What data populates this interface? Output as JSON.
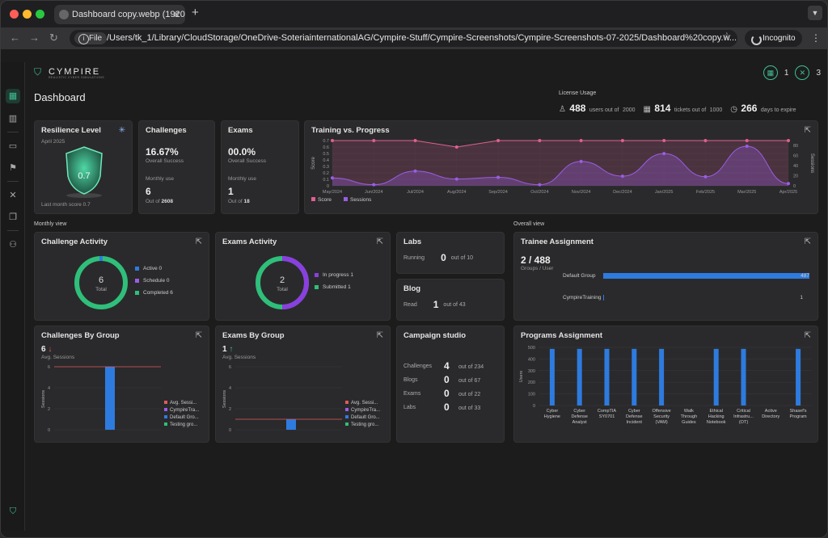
{
  "browser": {
    "tab_title": "Dashboard copy.webp (1920×",
    "file_label": "File",
    "url": "/Users/tk_1/Library/CloudStorage/OneDrive-SoteriainternationalAG/Cympire-Stuff/Cympire-Screenshots/Cympire-Screenshots-07-2025/Dashboard%20copy.w...",
    "incognito_label": "Incognito"
  },
  "app": {
    "brand": "CYMPIRE",
    "brand_sub": "REALISTIC CYBER SIMULATIONS",
    "header_count_1": "1",
    "header_count_2": "3",
    "page_title": "Dashboard"
  },
  "license": {
    "title": "License Usage",
    "users": "488",
    "users_text": "users out of",
    "users_total": "2000",
    "tickets": "814",
    "tickets_text": "tickets out of",
    "tickets_total": "1000",
    "days": "266",
    "days_text": "days to expire"
  },
  "resilience": {
    "title": "Resilience Level",
    "date": "April 2025",
    "score": "0.7",
    "last_month": "Last month score 0.7"
  },
  "challenges": {
    "title": "Challenges",
    "pct": "16.67%",
    "pct_label": "Overall Success",
    "monthly_label": "Monthly use",
    "monthly": "6",
    "out_of": "Out of",
    "total": "2608"
  },
  "exams": {
    "title": "Exams",
    "pct": "00.0%",
    "pct_label": "Overall Success",
    "monthly_label": "Monthly use",
    "monthly": "1",
    "out_of": "Out of",
    "total": "18"
  },
  "training": {
    "title": "Training vs. Progress",
    "ylabel": "Score",
    "y2label": "Sessions",
    "legend_score": "Score",
    "legend_sessions": "Sessions",
    "months": [
      "May/2024",
      "Jun/2024",
      "Jul/2024",
      "Aug/2024",
      "Sep/2024",
      "Oct/2024",
      "Nov/2024",
      "Dec/2024",
      "Jan/2025",
      "Feb/2025",
      "Mar/2025",
      "Apr/2025"
    ],
    "yticks": [
      "0.7",
      "0.6",
      "0.5",
      "0.4",
      "0.3",
      "0.2",
      "0.1",
      "0"
    ],
    "y2ticks": [
      "80",
      "60",
      "40",
      "20",
      "0"
    ],
    "score": [
      0.7,
      0.7,
      0.7,
      0.6,
      0.7,
      0.7,
      0.7,
      0.7,
      0.7,
      0.7,
      0.7,
      0.7
    ],
    "sessions": [
      14,
      2,
      26,
      12,
      15,
      2,
      43,
      17,
      57,
      16,
      70,
      4
    ]
  },
  "sections": {
    "monthly": "Monthly view",
    "overall": "Overall view"
  },
  "challenge_activity": {
    "title": "Challenge Activity",
    "center": "6",
    "center_label": "Total",
    "legend": [
      "Active 0",
      "Schedule 0",
      "Completed 6"
    ],
    "values": [
      0,
      0,
      6
    ]
  },
  "exams_activity": {
    "title": "Exams Activity",
    "center": "2",
    "center_label": "Total",
    "legend": [
      "In progress 1",
      "Submitted 1"
    ],
    "values": [
      1,
      1
    ]
  },
  "labs": {
    "title": "Labs",
    "label": "Running",
    "value": "0",
    "out_of": "out of",
    "total": "10"
  },
  "blog": {
    "title": "Blog",
    "label": "Read",
    "value": "1",
    "out_of": "out of",
    "total": "43"
  },
  "campaign": {
    "title": "Campaign studio",
    "rows": [
      {
        "label": "Challenges",
        "value": "4",
        "out": "out of 234"
      },
      {
        "label": "Blogs",
        "value": "0",
        "out": "out of 67"
      },
      {
        "label": "Exams",
        "value": "0",
        "out": "out of 22"
      },
      {
        "label": "Labs",
        "value": "0",
        "out": "out of 33"
      }
    ]
  },
  "trainee": {
    "title": "Trainee Assignment",
    "value": "2 / 488",
    "sub": "Groups / User",
    "rows": [
      {
        "label": "Default Group",
        "value": "487",
        "fraction": 0.998
      },
      {
        "label": "CympireTraining",
        "value": "1",
        "fraction": 0.002
      }
    ]
  },
  "challenges_group": {
    "title": "Challenges By Group",
    "value": "6",
    "sub": "Avg. Sessions",
    "ylabel": "Sessions",
    "yticks": [
      "6",
      "4",
      "2",
      "0"
    ],
    "bar": 6,
    "avg": 6,
    "legend": [
      "Avg. Sessi...",
      "CympireTra...",
      "Default Gro...",
      "Testing gro..."
    ]
  },
  "exams_group": {
    "title": "Exams By Group",
    "value": "1",
    "sub": "Avg. Sessions",
    "ylabel": "Sessions",
    "yticks": [
      "6",
      "4",
      "2",
      "0"
    ],
    "bar": 1,
    "avg": 1,
    "legend": [
      "Avg. Sessi...",
      "CympireTra...",
      "Default Gro...",
      "Testing gro..."
    ]
  },
  "programs": {
    "title": "Programs Assignment",
    "ylabel": "Users",
    "yticks": [
      "500",
      "400",
      "300",
      "200",
      "100",
      "0"
    ],
    "categories": [
      [
        "Cyber",
        "Hygiene"
      ],
      [
        "Cyber",
        "Defense",
        "Analyst"
      ],
      [
        "CompTIA",
        "SY0701"
      ],
      [
        "Cyber",
        "Defense",
        "Incident"
      ],
      [
        "Offensive",
        "Security",
        "(VAM)"
      ],
      [
        "Walk",
        "Through",
        "Guides"
      ],
      [
        "Ethical",
        "Hacking",
        "Notebook"
      ],
      [
        "Critical",
        "Infrastru...",
        "(OT)"
      ],
      [
        "Active",
        "Directory"
      ],
      [
        "Shasef's",
        "Program"
      ]
    ],
    "values": [
      487,
      487,
      487,
      487,
      487,
      0,
      487,
      487,
      0,
      487
    ]
  },
  "colors": {
    "accent": "#3fbf94",
    "score": "#e0608f",
    "sessions": "#9b5de5",
    "bar": "#2e7be0"
  }
}
